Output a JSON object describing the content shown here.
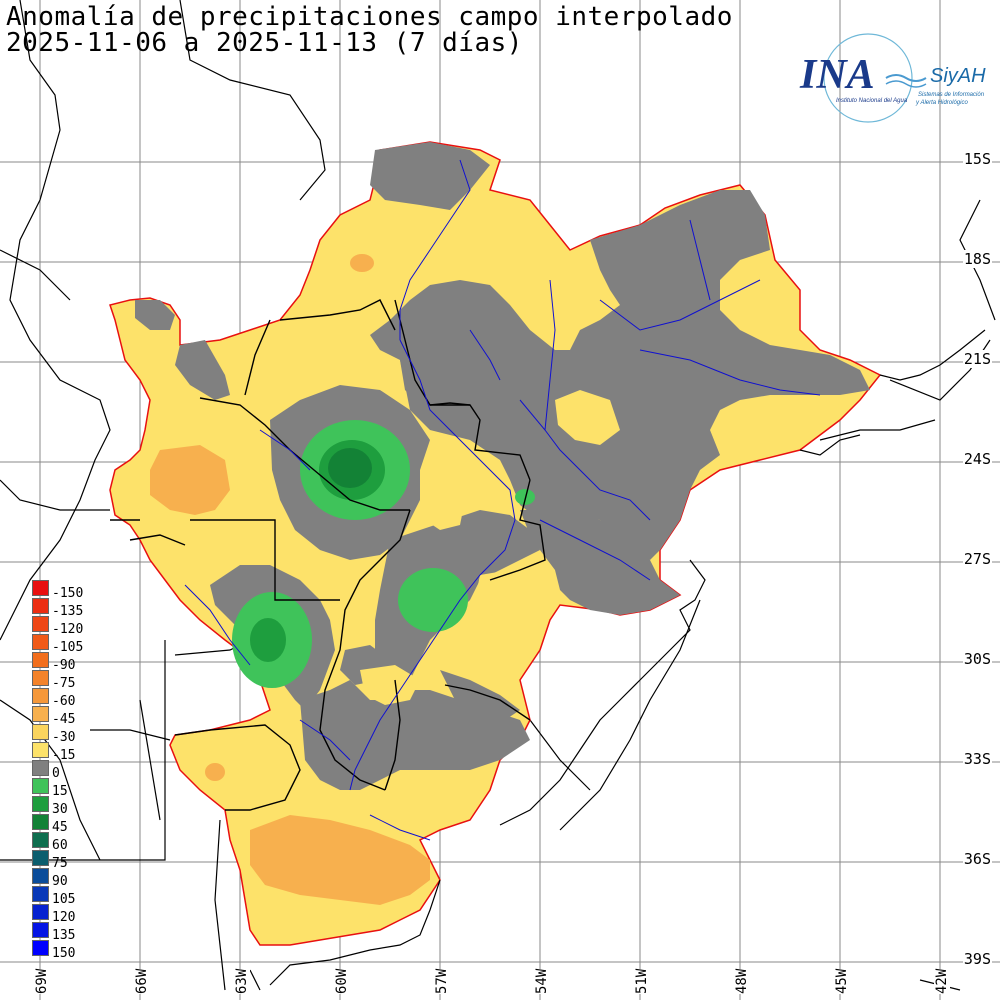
{
  "title_line1": "Anomalía de precipitaciones campo interpolado",
  "title_line2": "2025-11-06 a 2025-11-13 (7 días)",
  "logo": {
    "main": "INA",
    "brand": "SiyAH",
    "subtitle": "Instituto Nacional del Agua",
    "tagline1": "Sistemas de Información",
    "tagline2": "y Alerta Hidrológico"
  },
  "lat_labels": [
    "15S",
    "18S",
    "21S",
    "24S",
    "27S",
    "30S",
    "33S",
    "36S",
    "39S"
  ],
  "lon_labels": [
    "69W",
    "66W",
    "63W",
    "60W",
    "57W",
    "54W",
    "51W",
    "48W",
    "45W",
    "42W"
  ],
  "legend": [
    {
      "label": "-150",
      "color": "#e81010"
    },
    {
      "label": "-135",
      "color": "#ec2e12"
    },
    {
      "label": "-120",
      "color": "#ef4716"
    },
    {
      "label": "-105",
      "color": "#f05a18"
    },
    {
      "label": "-90",
      "color": "#f26e1c"
    },
    {
      "label": "-75",
      "color": "#f4832a"
    },
    {
      "label": "-60",
      "color": "#f5983a"
    },
    {
      "label": "-45",
      "color": "#f7b04e"
    },
    {
      "label": "-30",
      "color": "#fad45e"
    },
    {
      "label": "-15",
      "color": "#fde26a"
    },
    {
      "label": "0",
      "color": "#808080"
    },
    {
      "label": "15",
      "color": "#3fc35a"
    },
    {
      "label": "30",
      "color": "#1e9e3e"
    },
    {
      "label": "45",
      "color": "#138236"
    },
    {
      "label": "60",
      "color": "#0e6e4e"
    },
    {
      "label": "75",
      "color": "#0c5e6e"
    },
    {
      "label": "90",
      "color": "#0a4c9a"
    },
    {
      "label": "105",
      "color": "#0838b8"
    },
    {
      "label": "120",
      "color": "#0622d0"
    },
    {
      "label": "135",
      "color": "#0414e4"
    },
    {
      "label": "150",
      "color": "#0000ff"
    }
  ],
  "colors": {
    "gray": "#808080",
    "yellow": "#fde26a",
    "orange": "#f7b04e",
    "green_light": "#3fc35a",
    "green_dark": "#138236",
    "border": "#e81010",
    "rivers": "#1010d0"
  }
}
